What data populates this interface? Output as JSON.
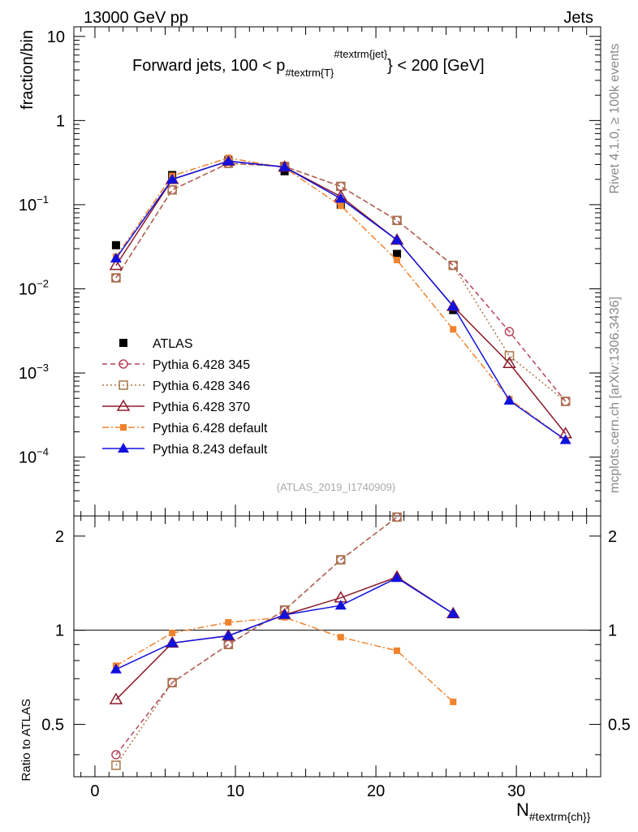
{
  "header": {
    "left": "13000 GeV pp",
    "right": "Jets"
  },
  "side": {
    "rivet": "Rivet 4.1.0, ≥ 100k events",
    "mcplots": "mcplots.cern.ch [arXiv:1306.3436]"
  },
  "chart_data": [
    {
      "type": "line",
      "panel": "main",
      "title": "Forward jets, 100 < p",
      "title_sub": "#textrm{T}",
      "title_sup": "#textrm{jet}",
      "title_tail": "} < 200 [GeV]",
      "watermark": "(ATLAS_2019_I1740909)",
      "ylabel": "fraction/bin",
      "yscale": "log",
      "ylim": [
        2e-05,
        13
      ],
      "y_ticks": [
        {
          "value": 10,
          "base": "10",
          "exp": ""
        },
        {
          "value": 1,
          "base": "1",
          "exp": ""
        },
        {
          "value": 0.1,
          "base": "10",
          "exp": "−1"
        },
        {
          "value": 0.01,
          "base": "10",
          "exp": "−2"
        },
        {
          "value": 0.001,
          "base": "10",
          "exp": "−3"
        },
        {
          "value": 0.0001,
          "base": "10",
          "exp": "−4"
        }
      ],
      "x": [
        1.5,
        5.5,
        9.5,
        13.5,
        17.5,
        21.5,
        25.5,
        29.5,
        33.5
      ],
      "series": [
        {
          "name": "ATLAS",
          "color": "#000000",
          "marker": "square-filled",
          "line": "none",
          "values": [
            0.033,
            0.225,
            0.34,
            0.25,
            0.1,
            0.026,
            0.0056,
            null,
            null
          ]
        },
        {
          "name": "Pythia 6.428 345",
          "color": "#b5465c",
          "marker": "circle-open",
          "line": "dashed",
          "values": [
            0.0135,
            0.15,
            0.31,
            0.285,
            0.165,
            0.065,
            0.019,
            0.0031,
            0.00046
          ]
        },
        {
          "name": "Pythia 6.428 346",
          "color": "#a8764a",
          "marker": "square-open",
          "line": "dotted",
          "values": [
            0.0135,
            0.15,
            0.31,
            0.285,
            0.165,
            0.065,
            0.019,
            0.0016,
            0.00046
          ]
        },
        {
          "name": "Pythia 6.428 370",
          "color": "#8b1a2a",
          "marker": "triangle-open",
          "line": "solid",
          "values": [
            0.019,
            0.2,
            0.33,
            0.28,
            0.125,
            0.038,
            0.0062,
            0.0013,
            0.00019
          ]
        },
        {
          "name": "Pythia 6.428 default",
          "color": "#f0822d",
          "marker": "square-filled-small",
          "line": "dashdot",
          "values": [
            0.024,
            0.22,
            0.36,
            0.275,
            0.097,
            0.022,
            0.0033,
            0.00049,
            0.00016
          ]
        },
        {
          "name": "Pythia 8.243 default",
          "color": "#1111dd",
          "marker": "triangle-filled",
          "line": "solid",
          "values": [
            0.023,
            0.2,
            0.33,
            0.28,
            0.118,
            0.038,
            0.0062,
            0.00047,
            0.00016
          ]
        }
      ]
    },
    {
      "type": "line",
      "panel": "ratio",
      "ylabel": "Ratio to ATLAS",
      "xlabel": "N",
      "xlabel_sub": "#textrm{ch}}",
      "xlim": [
        -1.5,
        36
      ],
      "ylim": [
        0.34,
        2.32
      ],
      "y_ticks": [
        0.5,
        1,
        2
      ],
      "x_ticks": [
        0,
        10,
        20,
        30
      ],
      "reference": 1,
      "x": [
        1.5,
        5.5,
        9.5,
        13.5,
        17.5,
        21.5,
        25.5
      ],
      "series": [
        {
          "name": "Pythia 6.428 345",
          "values": [
            0.4,
            0.68,
            0.9,
            1.16,
            1.68,
            2.3,
            null
          ]
        },
        {
          "name": "Pythia 6.428 346",
          "values": [
            0.37,
            0.68,
            0.9,
            1.16,
            1.68,
            2.3,
            null
          ]
        },
        {
          "name": "Pythia 6.428 370",
          "values": [
            0.6,
            0.91,
            0.96,
            1.12,
            1.27,
            1.48,
            1.13
          ]
        },
        {
          "name": "Pythia 6.428 default",
          "values": [
            0.77,
            0.98,
            1.06,
            1.1,
            0.95,
            0.86,
            0.59
          ]
        },
        {
          "name": "Pythia 8.243 default",
          "values": [
            0.75,
            0.91,
            0.96,
            1.12,
            1.2,
            1.47,
            1.13
          ]
        }
      ]
    }
  ]
}
